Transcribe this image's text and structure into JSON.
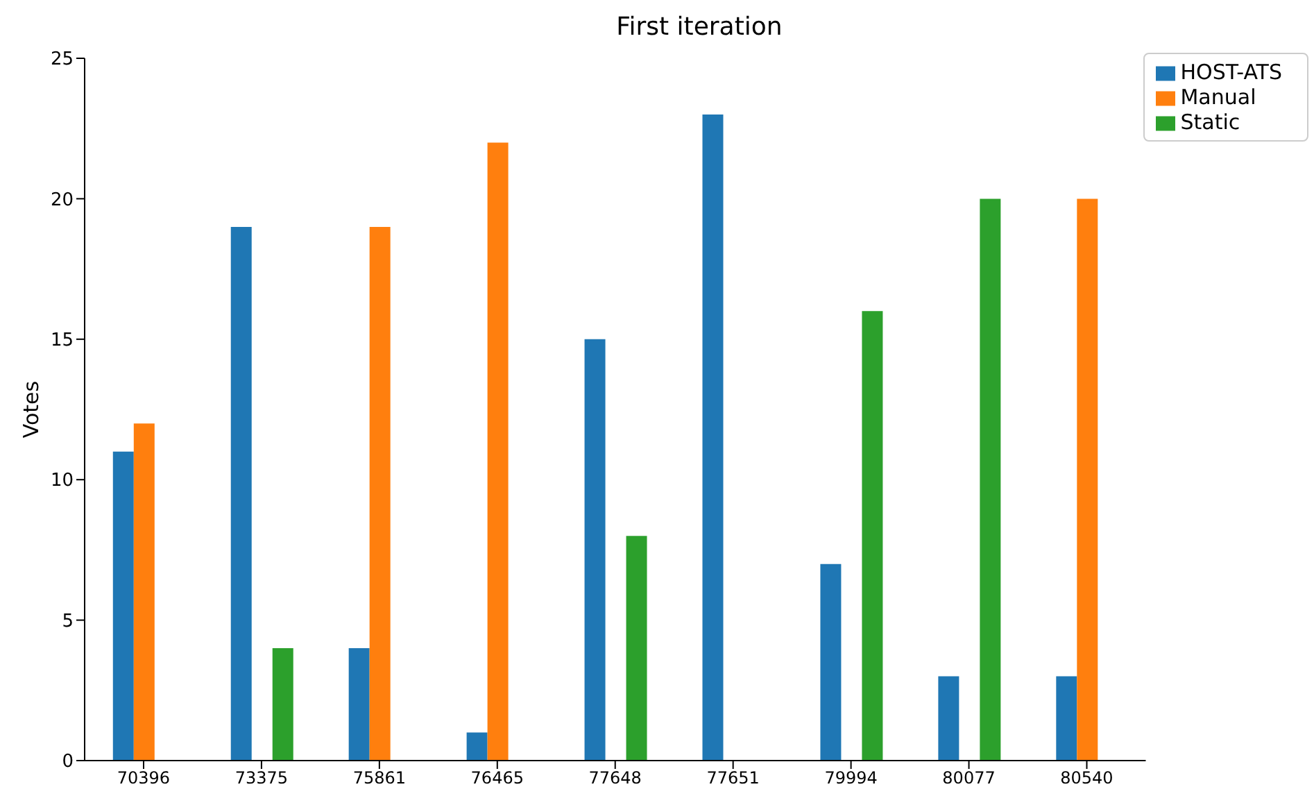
{
  "chart_data": {
    "type": "bar",
    "title": "First iteration",
    "ylabel": "Votes",
    "categories": [
      "70396",
      "73375",
      "75861",
      "76465",
      "77648",
      "77651",
      "79994",
      "80077",
      "80540"
    ],
    "series": [
      {
        "name": "HOST-ATS",
        "color": "#1f77b4",
        "values": [
          11,
          19,
          4,
          1,
          15,
          23,
          7,
          3,
          3
        ]
      },
      {
        "name": "Manual",
        "color": "#ff7f0e",
        "values": [
          12,
          0,
          19,
          22,
          0,
          0,
          0,
          0,
          20
        ]
      },
      {
        "name": "Static",
        "color": "#2ca02c",
        "values": [
          0,
          4,
          0,
          0,
          8,
          0,
          16,
          20,
          0
        ]
      }
    ],
    "ylim": [
      0,
      25
    ],
    "yticks": [
      0,
      5,
      10,
      15,
      20,
      25
    ],
    "grid": false,
    "legend": "top right"
  }
}
